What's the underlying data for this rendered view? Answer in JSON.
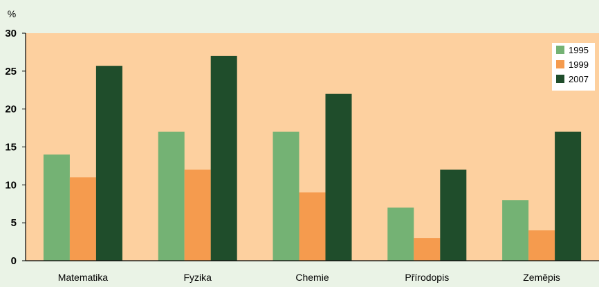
{
  "chart_data": {
    "type": "bar",
    "ylabel": "%",
    "ylim": [
      0,
      30
    ],
    "yticks": [
      0,
      5,
      10,
      15,
      20,
      25,
      30
    ],
    "grid": false,
    "legend_position": "top-right",
    "categories": [
      "Matematika",
      "Fyzika",
      "Chemie",
      "Přírodopis",
      "Zeměpis"
    ],
    "series": [
      {
        "name": "1995",
        "color": "#74b274",
        "values": [
          14,
          17,
          17,
          7,
          8
        ]
      },
      {
        "name": "1999",
        "color": "#f59b4e",
        "values": [
          11,
          12,
          9,
          3,
          4
        ]
      },
      {
        "name": "2007",
        "color": "#1f4d2b",
        "values": [
          25.7,
          27,
          22,
          12,
          17
        ]
      }
    ],
    "colors": {
      "page_background": "#eaf3e6",
      "plot_background": "#fdd09f",
      "axis": "#000000"
    }
  }
}
